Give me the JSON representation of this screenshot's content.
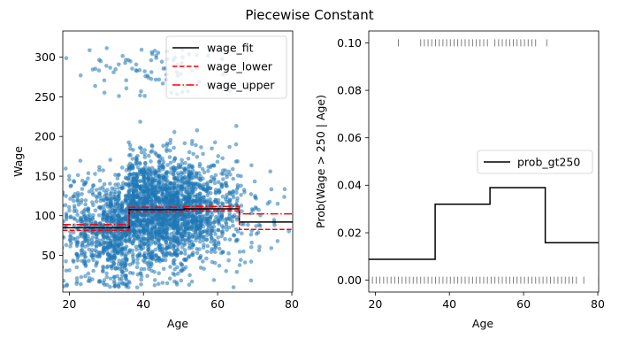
{
  "figure": {
    "title": "Piecewise Constant"
  },
  "chart_data": [
    {
      "type": "scatter",
      "xlabel": "Age",
      "ylabel": "Wage",
      "xlim": [
        18,
        80
      ],
      "ylim": [
        17,
        334
      ],
      "xticks": [
        20,
        40,
        60,
        80
      ],
      "yticks": [
        50,
        100,
        150,
        200,
        250,
        300
      ],
      "scatter": {
        "color": "#1f77b4",
        "alpha": 0.55,
        "approx_points": 3000
      },
      "series": [
        {
          "name": "wage_fit",
          "color": "#000000",
          "style": "solid",
          "x": [
            18,
            35.9,
            35.9,
            50.7,
            50.7,
            65.6,
            65.6,
            80
          ],
          "y": [
            95,
            95,
            117,
            117,
            118,
            118,
            102,
            102
          ]
        },
        {
          "name": "wage_lower",
          "color": "#ff0000",
          "style": "dashed",
          "x": [
            18,
            35.9,
            35.9,
            50.7,
            50.7,
            65.6,
            65.6,
            80
          ],
          "y": [
            92,
            92,
            114.5,
            114.5,
            115.5,
            115.5,
            93,
            93
          ]
        },
        {
          "name": "wage_upper",
          "color": "#ff0000",
          "style": "dashdot",
          "x": [
            18,
            35.9,
            35.9,
            50.7,
            50.7,
            65.6,
            65.6,
            80
          ],
          "y": [
            99,
            99,
            120,
            120,
            121,
            121,
            112,
            112
          ]
        }
      ],
      "legend": "upper-right"
    },
    {
      "type": "line",
      "xlabel": "Age",
      "ylabel": "Prob(Wage > 250 | Age)",
      "xlim": [
        18,
        80
      ],
      "ylim": [
        -0.005,
        0.105
      ],
      "xticks": [
        20,
        40,
        60,
        80
      ],
      "yticks": [
        0.0,
        0.02,
        0.04,
        0.06,
        0.08,
        0.1
      ],
      "ytick_labels": [
        "0.00",
        "0.02",
        "0.04",
        "0.06",
        "0.08",
        "0.10"
      ],
      "series": [
        {
          "name": "prob_gt250",
          "color": "#000000",
          "style": "solid",
          "x": [
            18,
            35.9,
            35.9,
            50.7,
            50.7,
            65.6,
            65.6,
            80
          ],
          "y": [
            0.0088,
            0.0088,
            0.032,
            0.032,
            0.039,
            0.039,
            0.0158,
            0.0158
          ]
        }
      ],
      "rug": {
        "color": "#808080",
        "high_y": 0.1,
        "high_x": [
          26,
          32,
          33,
          34,
          35,
          36,
          37,
          38,
          39,
          40,
          41,
          42,
          43,
          44,
          45,
          46,
          47,
          48,
          49,
          50,
          52,
          53,
          54,
          55,
          56,
          57,
          58,
          59,
          60,
          61,
          62,
          63,
          66
        ],
        "low_y": 0.0,
        "low_x_range": [
          18,
          80
        ],
        "low_x_extra": [
          76,
          80
        ]
      },
      "legend": "center-right"
    }
  ],
  "tick_text": {
    "left_x": [
      "20",
      "40",
      "60",
      "80"
    ],
    "left_y": [
      "50",
      "100",
      "150",
      "200",
      "250",
      "300"
    ],
    "right_x": [
      "20",
      "40",
      "60",
      "80"
    ],
    "right_y": [
      "0.00",
      "0.02",
      "0.04",
      "0.06",
      "0.08",
      "0.10"
    ]
  }
}
